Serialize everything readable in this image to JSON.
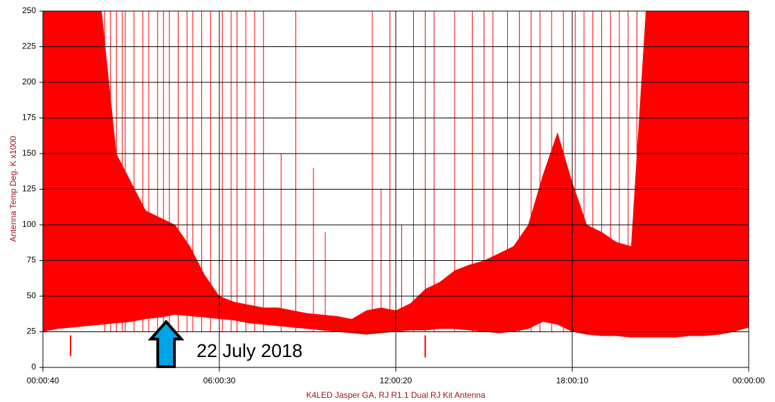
{
  "chart_data": {
    "type": "area",
    "color": "#ff0000",
    "ylabel": "Antenna Temp Deg. K x1000",
    "xlabel": "K4LED Jasper GA, RJ R1.1 Dual RJ Kit Antenna",
    "annotation": "22 July 2018",
    "ylim": [
      0,
      250
    ],
    "yticks": [
      0,
      25,
      50,
      75,
      100,
      125,
      150,
      175,
      200,
      225,
      250
    ],
    "xlim": [
      0,
      24
    ],
    "xticks": [
      {
        "value": 0,
        "label": "00:00:40"
      },
      {
        "value": 6,
        "label": "06:00:30"
      },
      {
        "value": 12,
        "label": "12:00:20"
      },
      {
        "value": 18,
        "label": "18:00:10"
      },
      {
        "value": 24,
        "label": "00:00:00"
      }
    ],
    "grid": true,
    "x": [
      0,
      0.5,
      1,
      1.5,
      2,
      2.5,
      3,
      3.5,
      4,
      4.5,
      5,
      5.5,
      6,
      6.5,
      7,
      7.5,
      8,
      8.5,
      9,
      9.5,
      10,
      10.5,
      11,
      11.5,
      12,
      12.5,
      13,
      13.5,
      14,
      14.5,
      15,
      15.5,
      16,
      16.5,
      17,
      17.5,
      18,
      18.5,
      19,
      19.5,
      20,
      20.5,
      21,
      21.5,
      22,
      22.5,
      23,
      23.5,
      24
    ],
    "high": [
      250,
      250,
      250,
      250,
      250,
      150,
      130,
      110,
      105,
      100,
      85,
      65,
      50,
      46,
      44,
      42,
      42,
      40,
      38,
      37,
      36,
      34,
      40,
      42,
      40,
      45,
      55,
      60,
      68,
      72,
      75,
      80,
      85,
      100,
      135,
      165,
      130,
      100,
      95,
      88,
      85,
      250,
      250,
      250,
      250,
      250,
      250,
      250,
      250
    ],
    "low": [
      25,
      27,
      28,
      29,
      30,
      31,
      32,
      34,
      35,
      37,
      36,
      35,
      34,
      33,
      31,
      30,
      29,
      28,
      27,
      26,
      25,
      24,
      23,
      24,
      25,
      26,
      26,
      27,
      27,
      26,
      25,
      24,
      25,
      27,
      32,
      30,
      25,
      23,
      22,
      22,
      21,
      21,
      21,
      21,
      22,
      22,
      23,
      25,
      28
    ],
    "spike_x": [
      2.1,
      2.3,
      2.5,
      2.7,
      2.8,
      3.1,
      3.4,
      3.6,
      3.9,
      4.1,
      4.3,
      4.6,
      4.9,
      5.1,
      5.4,
      5.7,
      6.1,
      6.4,
      6.6,
      6.9,
      7.2,
      7.5,
      8.1,
      8.6,
      9.2,
      9.6,
      11.2,
      11.5,
      11.8,
      12.2,
      12.6,
      13.0,
      13.3,
      14.0,
      14.6,
      15.0,
      15.3,
      15.8,
      16.2,
      16.6,
      16.9,
      17.3,
      17.7,
      18.1,
      18.4,
      18.7,
      19.0,
      19.3,
      19.6,
      19.9,
      20.2
    ],
    "spike_values": [
      250,
      250,
      250,
      250,
      250,
      250,
      250,
      250,
      250,
      250,
      250,
      250,
      250,
      250,
      250,
      250,
      250,
      250,
      250,
      250,
      250,
      250,
      150,
      250,
      140,
      95,
      250,
      125,
      250,
      100,
      250,
      250,
      250,
      250,
      250,
      250,
      250,
      250,
      250,
      250,
      250,
      250,
      250,
      250,
      250,
      250,
      250,
      250,
      250,
      250,
      250
    ],
    "dip_x": [
      0.94,
      13.0
    ],
    "dip_values": [
      8,
      7
    ]
  }
}
